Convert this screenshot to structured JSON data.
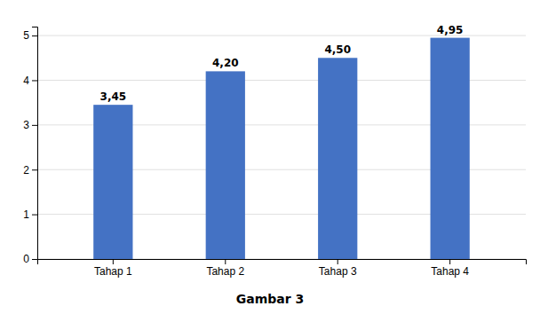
{
  "chart_data": {
    "type": "bar",
    "title": "Gambar 3",
    "categories": [
      "Tahap 1",
      "Tahap 2",
      "Tahap 3",
      "Tahap 4"
    ],
    "values": [
      3.45,
      4.2,
      4.5,
      4.95
    ],
    "value_labels": [
      "3,45",
      "4,20",
      "4,50",
      "4,95"
    ],
    "color": "#4472C4",
    "ylim": [
      0,
      5.2
    ],
    "yticks": [
      0,
      1,
      2,
      3,
      4,
      5
    ],
    "grid": true,
    "data_labels": true
  }
}
